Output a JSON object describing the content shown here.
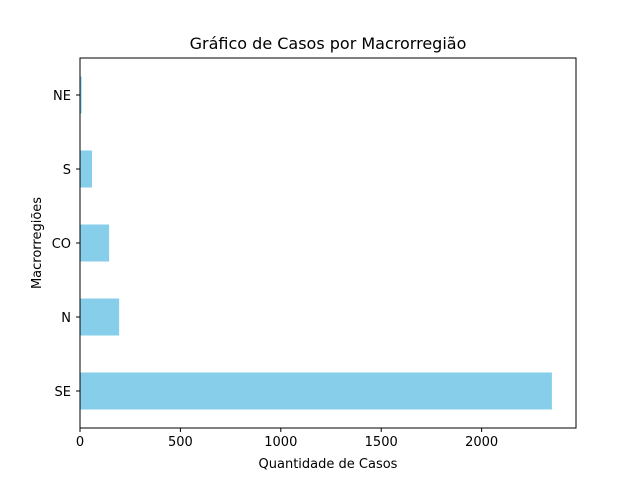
{
  "chart_data": {
    "type": "bar",
    "orientation": "horizontal",
    "title": "Gráfico de Casos por Macrorregião",
    "xlabel": "Quantidade de Casos",
    "ylabel": "Macrorregiões",
    "categories": [
      "SE",
      "N",
      "CO",
      "S",
      "NE"
    ],
    "values": [
      2350,
      195,
      145,
      60,
      8
    ],
    "xlim": [
      0,
      2470
    ],
    "xticks": [
      0,
      500,
      1000,
      1500,
      2000
    ],
    "bar_color": "#87ceeb",
    "grid": false,
    "legend": "none"
  }
}
